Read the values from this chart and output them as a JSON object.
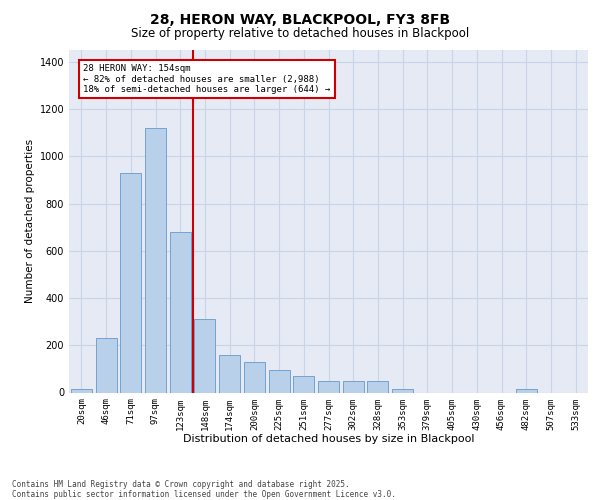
{
  "title": "28, HERON WAY, BLACKPOOL, FY3 8FB",
  "subtitle": "Size of property relative to detached houses in Blackpool",
  "xlabel": "Distribution of detached houses by size in Blackpool",
  "ylabel": "Number of detached properties",
  "categories": [
    "20sqm",
    "46sqm",
    "71sqm",
    "97sqm",
    "123sqm",
    "148sqm",
    "174sqm",
    "200sqm",
    "225sqm",
    "251sqm",
    "277sqm",
    "302sqm",
    "328sqm",
    "353sqm",
    "379sqm",
    "405sqm",
    "430sqm",
    "456sqm",
    "482sqm",
    "507sqm",
    "533sqm"
  ],
  "values": [
    15,
    230,
    930,
    1120,
    680,
    310,
    160,
    130,
    95,
    70,
    50,
    50,
    50,
    15,
    0,
    0,
    0,
    0,
    15,
    0,
    0
  ],
  "bar_color": "#b8d0ea",
  "bar_edge_color": "#6699cc",
  "red_line_x": 4.5,
  "annotation_text": "28 HERON WAY: 154sqm\n← 82% of detached houses are smaller (2,988)\n18% of semi-detached houses are larger (644) →",
  "vline_color": "#cc0000",
  "ann_box_edge": "#cc0000",
  "ann_box_face": "#ffffff",
  "ylim": [
    0,
    1450
  ],
  "yticks": [
    0,
    200,
    400,
    600,
    800,
    1000,
    1200,
    1400
  ],
  "grid_color": "#c8d4e8",
  "bg_color": "#e6eaf4",
  "footer_text": "Contains HM Land Registry data © Crown copyright and database right 2025.\nContains public sector information licensed under the Open Government Licence v3.0.",
  "title_fontsize": 10,
  "subtitle_fontsize": 8.5,
  "xlabel_fontsize": 8,
  "ylabel_fontsize": 7.5,
  "ann_fontsize": 6.5,
  "footer_fontsize": 5.5,
  "tick_fontsize": 6.5,
  "ytick_fontsize": 7
}
